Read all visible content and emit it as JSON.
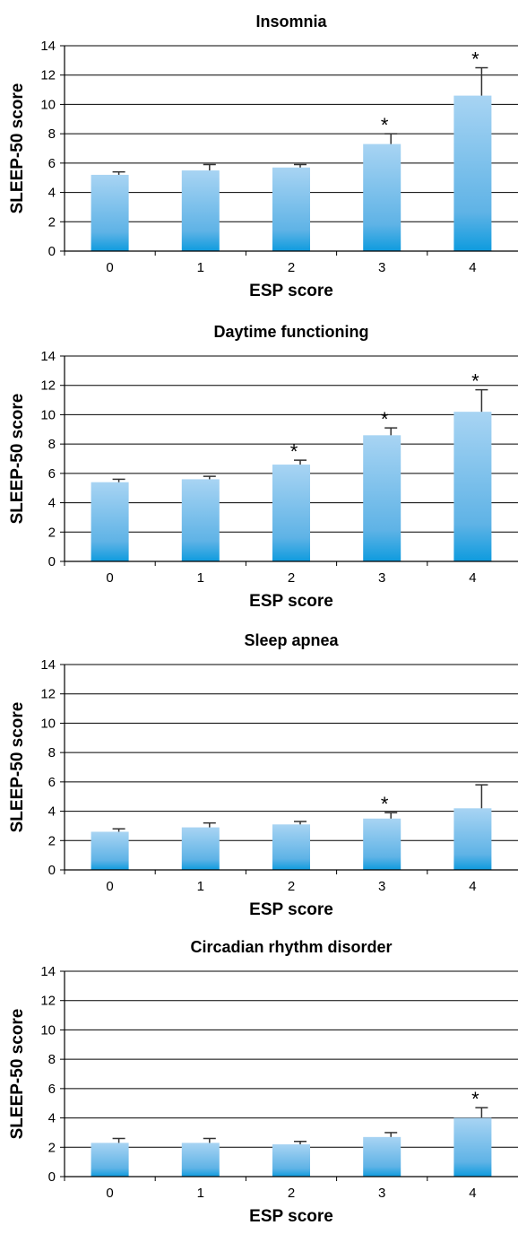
{
  "chart_data": [
    {
      "type": "bar",
      "title": "Insomnia",
      "xlabel": "ESP score",
      "ylabel": "SLEEP-50 score",
      "categories": [
        "0",
        "1",
        "2",
        "3",
        "4"
      ],
      "values": [
        5.2,
        5.5,
        5.7,
        7.3,
        10.6
      ],
      "error_upper": [
        5.4,
        5.9,
        5.9,
        8.0,
        12.5
      ],
      "significance": [
        "",
        "",
        "",
        "*",
        "*"
      ],
      "ylim": [
        0,
        14
      ],
      "yticks": [
        "0",
        "2",
        "4",
        "6",
        "8",
        "10",
        "12",
        "14"
      ],
      "grid": true,
      "bar_color": "#5fb3e6"
    },
    {
      "type": "bar",
      "title": "Daytime functioning",
      "xlabel": "ESP score",
      "ylabel": "SLEEP-50 score",
      "categories": [
        "0",
        "1",
        "2",
        "3",
        "4"
      ],
      "values": [
        5.4,
        5.6,
        6.6,
        8.6,
        10.2
      ],
      "error_upper": [
        5.6,
        5.8,
        6.9,
        9.1,
        11.7
      ],
      "significance": [
        "",
        "",
        "*",
        "*",
        "*"
      ],
      "ylim": [
        0,
        14
      ],
      "yticks": [
        "0",
        "2",
        "4",
        "6",
        "8",
        "10",
        "12",
        "14"
      ],
      "grid": true,
      "bar_color": "#5fb3e6"
    },
    {
      "type": "bar",
      "title": "Sleep apnea",
      "xlabel": "ESP score",
      "ylabel": "SLEEP-50 score",
      "categories": [
        "0",
        "1",
        "2",
        "3",
        "4"
      ],
      "values": [
        2.6,
        2.9,
        3.1,
        3.5,
        4.2
      ],
      "error_upper": [
        2.8,
        3.2,
        3.3,
        3.9,
        5.8
      ],
      "significance": [
        "",
        "",
        "",
        "*",
        ""
      ],
      "ylim": [
        0,
        14
      ],
      "yticks": [
        "0",
        "2",
        "4",
        "6",
        "8",
        "10",
        "12",
        "14"
      ],
      "grid": true,
      "bar_color": "#5fb3e6"
    },
    {
      "type": "bar",
      "title": "Circadian rhythm disorder",
      "xlabel": "ESP score",
      "ylabel": "SLEEP-50 score",
      "categories": [
        "0",
        "1",
        "2",
        "3",
        "4"
      ],
      "values": [
        2.3,
        2.3,
        2.2,
        2.7,
        4.0
      ],
      "error_upper": [
        2.6,
        2.6,
        2.4,
        3.0,
        4.7
      ],
      "significance": [
        "",
        "",
        "",
        "",
        "*"
      ],
      "ylim": [
        0,
        14
      ],
      "yticks": [
        "0",
        "2",
        "4",
        "6",
        "8",
        "10",
        "12",
        "14"
      ],
      "grid": true,
      "bar_color": "#5fb3e6"
    }
  ]
}
